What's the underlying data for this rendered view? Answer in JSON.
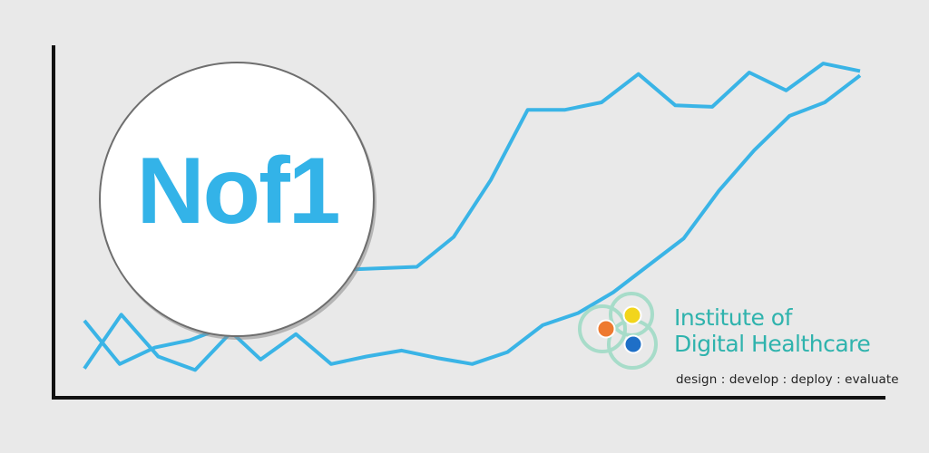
{
  "badge": {
    "text": "Nof1"
  },
  "logo": {
    "line1": "Institute of",
    "line2": "Digital Healthcare",
    "tagline": "design : develop : deploy : evaluate",
    "colors": {
      "teal": "#2fb3ad",
      "orange": "#ee7a30",
      "yellow": "#f2d51c",
      "blue": "#1f6fc7",
      "ring": "#a7dcc9"
    }
  },
  "colors": {
    "line": "#3ab4e6",
    "axis": "#111111",
    "background": "#e9e9e9",
    "badge_text": "#33b3e8"
  },
  "chart_data": {
    "type": "line",
    "series": [
      {
        "values": [
          2,
          38,
          10,
          1,
          27,
          35,
          45,
          68,
          69,
          70,
          90,
          128,
          175,
          175,
          180,
          199,
          178,
          177,
          200,
          188,
          206,
          201
        ]
      },
      {
        "values": [
          34,
          5,
          16,
          21,
          30,
          8,
          25,
          5,
          10,
          14,
          9,
          5,
          13,
          31,
          39,
          53,
          71,
          89,
          121,
          148,
          171,
          180,
          198
        ]
      }
    ],
    "grid": false
  }
}
